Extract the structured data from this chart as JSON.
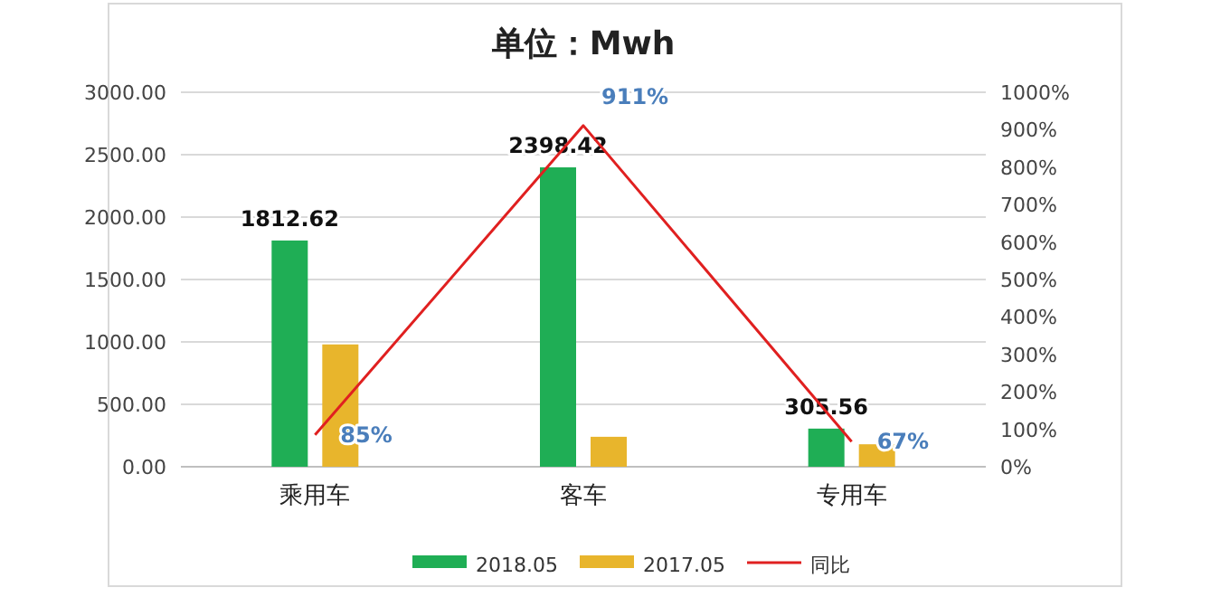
{
  "chart_data": {
    "type": "bar",
    "title": "单位：Mwh",
    "categories": [
      "乘用车",
      "客车",
      "专用车"
    ],
    "series": [
      {
        "name": "2018.05",
        "color": "#1fae55",
        "values": [
          1812.62,
          2398.42,
          305.56
        ],
        "value_labels": [
          "1812.62",
          "2398.42",
          "305.56"
        ]
      },
      {
        "name": "2017.05",
        "color": "#e8b52c",
        "values": [
          980,
          240,
          180
        ]
      },
      {
        "name": "同比",
        "type": "line",
        "axis": "y2",
        "color": "#e02020",
        "values": [
          85,
          911,
          67
        ],
        "value_labels": [
          "85%",
          "911%",
          "67%"
        ]
      }
    ],
    "ylim": [
      0,
      3000
    ],
    "yticks": [
      {
        "value": 0,
        "label": "0.00"
      },
      {
        "value": 500,
        "label": "500.00"
      },
      {
        "value": 1000,
        "label": "1000.00"
      },
      {
        "value": 1500,
        "label": "1500.00"
      },
      {
        "value": 2000,
        "label": "2000.00"
      },
      {
        "value": 2500,
        "label": "2500.00"
      },
      {
        "value": 3000,
        "label": "3000.00"
      }
    ],
    "y2lim": [
      0,
      1000
    ],
    "y2ticks": [
      {
        "value": 0,
        "label": "0%"
      },
      {
        "value": 100,
        "label": "100%"
      },
      {
        "value": 200,
        "label": "200%"
      },
      {
        "value": 300,
        "label": "300%"
      },
      {
        "value": 400,
        "label": "400%"
      },
      {
        "value": 500,
        "label": "500%"
      },
      {
        "value": 600,
        "label": "600%"
      },
      {
        "value": 700,
        "label": "700%"
      },
      {
        "value": 800,
        "label": "800%"
      },
      {
        "value": 900,
        "label": "900%"
      },
      {
        "value": 1000,
        "label": "1000%"
      }
    ],
    "grid": "y",
    "legend": "bottom",
    "marker": "none",
    "line_style": "solid"
  }
}
